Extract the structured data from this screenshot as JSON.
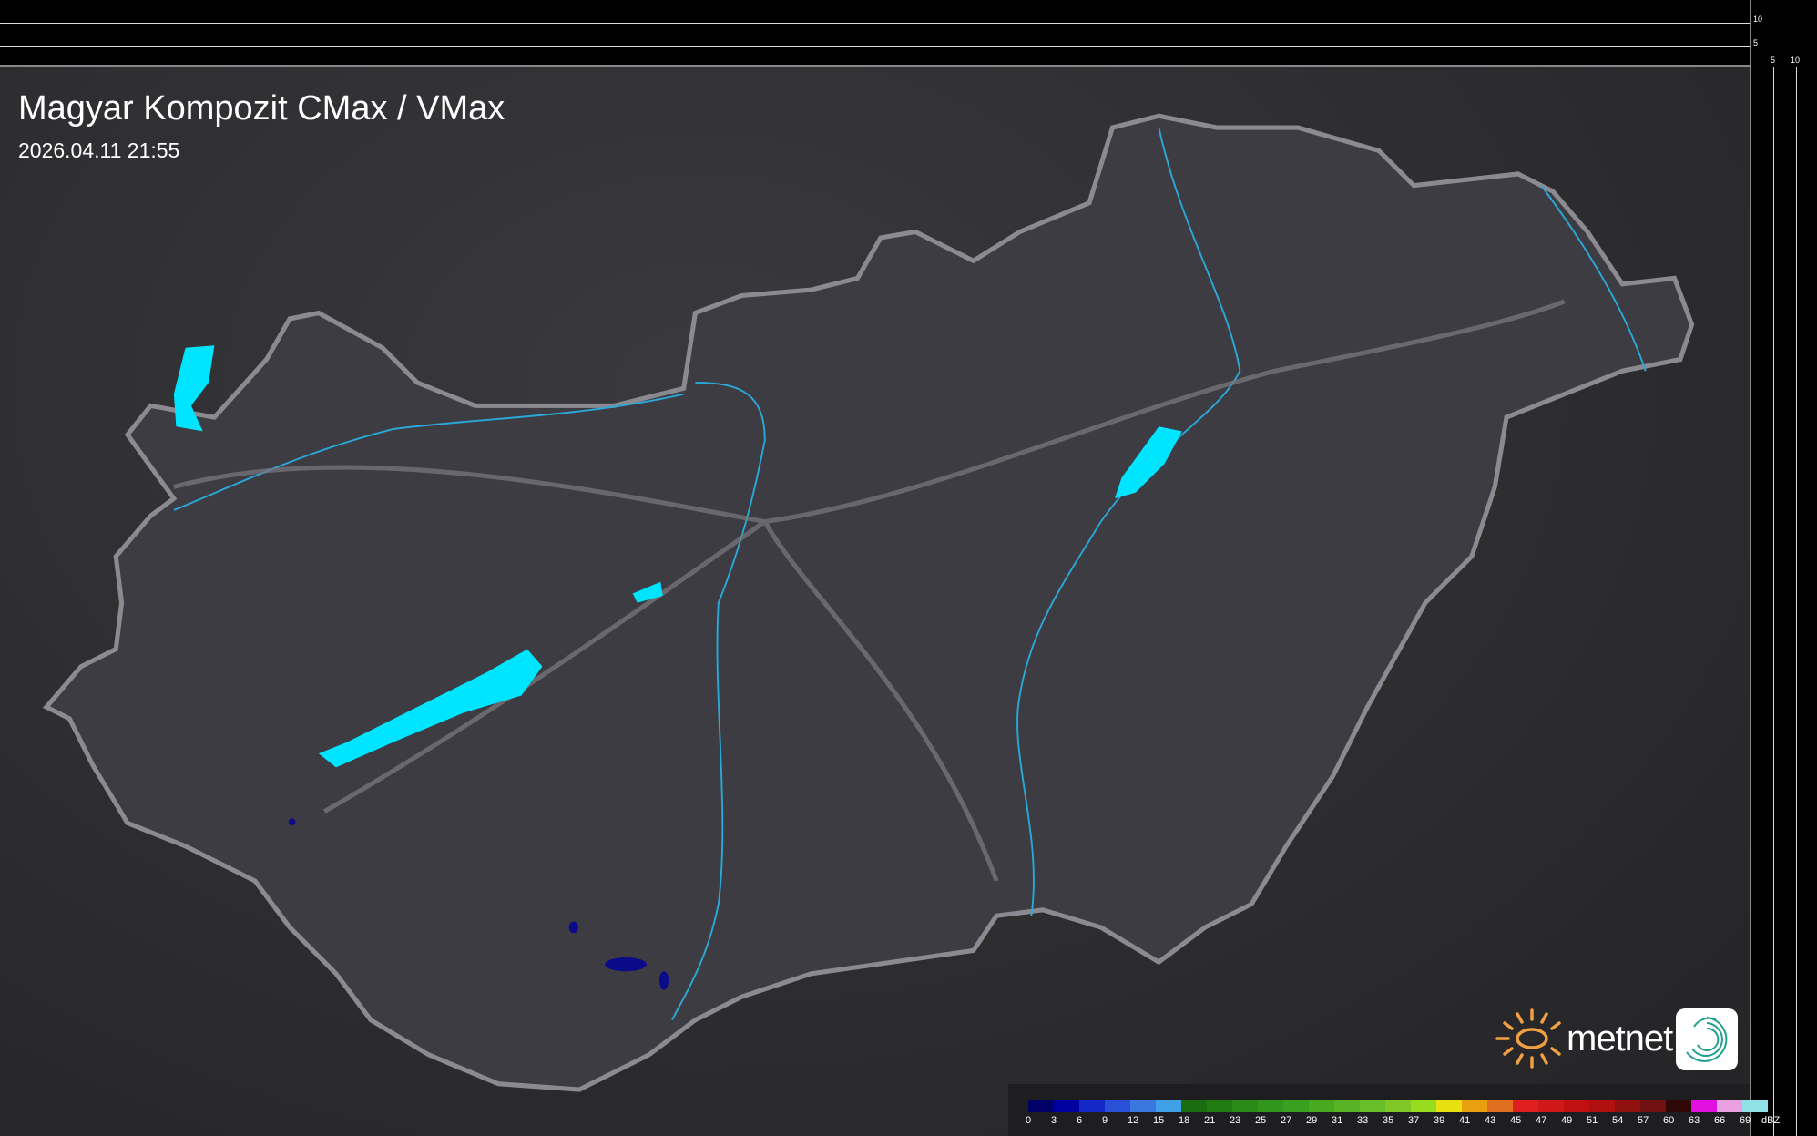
{
  "header": {
    "title": "Magyar Kompozit CMax / VMax",
    "datetime": "2026.04.11 21:55"
  },
  "profile_axes": {
    "top_ticks": [
      "10",
      "5"
    ],
    "right_ticks": [
      "5",
      "10"
    ]
  },
  "legend": {
    "unit": "dBZ",
    "labels": [
      "0",
      "3",
      "6",
      "9",
      "12",
      "15",
      "18",
      "21",
      "23",
      "25",
      "27",
      "29",
      "31",
      "33",
      "35",
      "37",
      "39",
      "41",
      "43",
      "45",
      "47",
      "49",
      "51",
      "54",
      "57",
      "60",
      "63",
      "66",
      "69"
    ],
    "colors": [
      "#000066",
      "#0000a0",
      "#1428c8",
      "#2a50d8",
      "#3a78e0",
      "#40a0e8",
      "#1a6e10",
      "#207c10",
      "#2a8a18",
      "#30961c",
      "#3aa020",
      "#48aa20",
      "#58b424",
      "#68be28",
      "#80c828",
      "#98dc20",
      "#e8e010",
      "#e8a010",
      "#e07020",
      "#e02020",
      "#d01818",
      "#c01010",
      "#b01010",
      "#901010",
      "#701010",
      "#300808",
      "#e010e0",
      "#e8a0e0",
      "#90e0e8"
    ]
  },
  "branding": {
    "logo_text": "metnet",
    "sun_color": "#f0a040",
    "icon_color": "#20a090"
  },
  "map": {
    "country_fill": "#3c3c42",
    "border_color": "#8a8a90",
    "lake_color": "#00e5ff",
    "river_color": "#2aa8d8"
  }
}
